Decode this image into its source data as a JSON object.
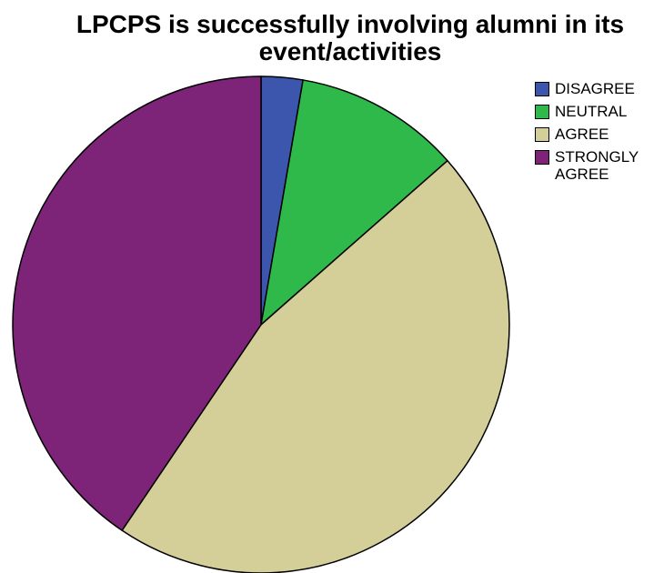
{
  "chart_data": {
    "type": "pie",
    "title_lines": [
      "LPCPS is successfully involving alumni in its",
      "event/activities"
    ],
    "categories": [
      "DISAGREE",
      "NEUTRAL",
      "AGREE",
      "STRONGLY AGREE"
    ],
    "values": [
      2.7,
      10.8,
      45.9,
      40.5
    ],
    "colors": [
      "#3c56ad",
      "#2fb94a",
      "#d4cf98",
      "#7d2478"
    ],
    "start": "top",
    "direction": "clockwise",
    "legend_position": "right"
  }
}
